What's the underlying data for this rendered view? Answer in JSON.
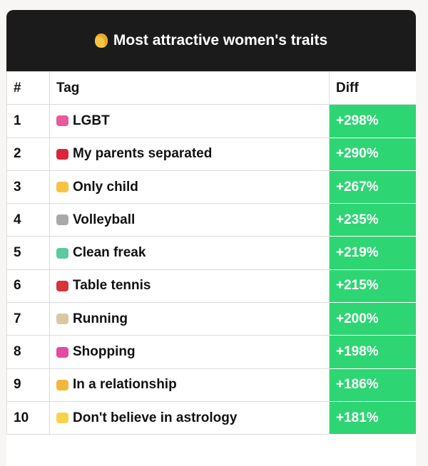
{
  "title": "Most attractive women's traits",
  "title_icon": "blond-woman-emoji",
  "columns": [
    "#",
    "Tag",
    "Diff"
  ],
  "colors": {
    "header_bg": "#1b1b1b",
    "diff_bg": "#2ed573"
  },
  "rows": [
    {
      "rank": "1",
      "icon": "rainbow-flag-icon",
      "icon_color": "#e85a9a",
      "tag": "LGBT",
      "diff": "+298%"
    },
    {
      "rank": "2",
      "icon": "broken-heart-icon",
      "icon_color": "#d9263a",
      "tag": "My parents separated",
      "diff": "+290%"
    },
    {
      "rank": "3",
      "icon": "child-icon",
      "icon_color": "#f6c343",
      "tag": "Only child",
      "diff": "+267%"
    },
    {
      "rank": "4",
      "icon": "volleyball-icon",
      "icon_color": "#a9a9a9",
      "tag": "Volleyball",
      "diff": "+235%"
    },
    {
      "rank": "5",
      "icon": "soap-icon",
      "icon_color": "#5cc9a0",
      "tag": "Clean freak",
      "diff": "+219%"
    },
    {
      "rank": "6",
      "icon": "ping-pong-icon",
      "icon_color": "#d6333a",
      "tag": "Table tennis",
      "diff": "+215%"
    },
    {
      "rank": "7",
      "icon": "runner-icon",
      "icon_color": "#d8c9a0",
      "tag": "Running",
      "diff": "+200%"
    },
    {
      "rank": "8",
      "icon": "shopping-bags-icon",
      "icon_color": "#e24aa5",
      "tag": "Shopping",
      "diff": "+198%"
    },
    {
      "rank": "9",
      "icon": "heart-eyes-icon",
      "icon_color": "#f4b63a",
      "tag": "In a relationship",
      "diff": "+186%"
    },
    {
      "rank": "10",
      "icon": "sparkles-icon",
      "icon_color": "#f7d34a",
      "tag": "Don't believe in astrology",
      "diff": "+181%"
    }
  ]
}
